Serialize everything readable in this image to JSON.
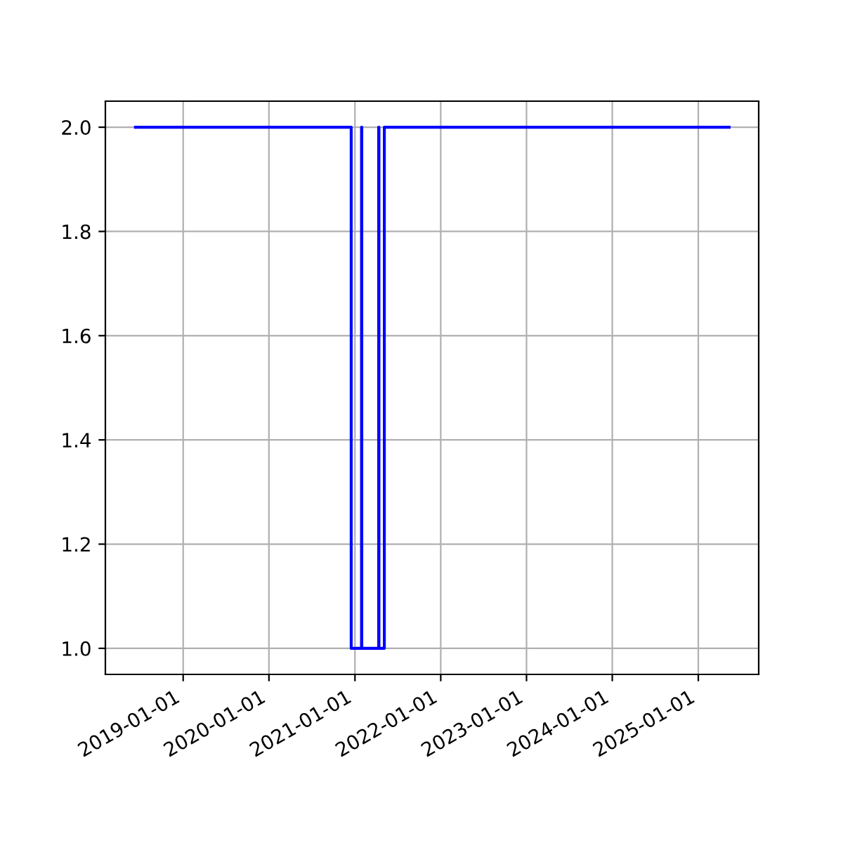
{
  "chart_data": {
    "type": "step",
    "x": [
      "2018-06-12",
      "2020-12-16",
      "2021-01-29",
      "2021-01-30",
      "2021-04-12",
      "2021-04-13",
      "2021-05-06",
      "2025-05-12"
    ],
    "series": [
      {
        "color": "#0000ff",
        "values": [
          2,
          1,
          2,
          1,
          2,
          1,
          2,
          2
        ]
      }
    ],
    "xlim": [
      "2018-02-04",
      "2025-09-15"
    ],
    "xticks": [
      "2019-01-01",
      "2020-01-01",
      "2021-01-01",
      "2022-01-01",
      "2023-01-01",
      "2024-01-01",
      "2025-01-01"
    ],
    "ylim": [
      0.95,
      2.05
    ],
    "yticks": [
      {
        "value": 1.0,
        "label": "1.0"
      },
      {
        "value": 1.2,
        "label": "1.2"
      },
      {
        "value": 1.4,
        "label": "1.4"
      },
      {
        "value": 1.6,
        "label": "1.6"
      },
      {
        "value": 1.8,
        "label": "1.8"
      },
      {
        "value": 2.0,
        "label": "2.0"
      }
    ],
    "grid": true
  }
}
